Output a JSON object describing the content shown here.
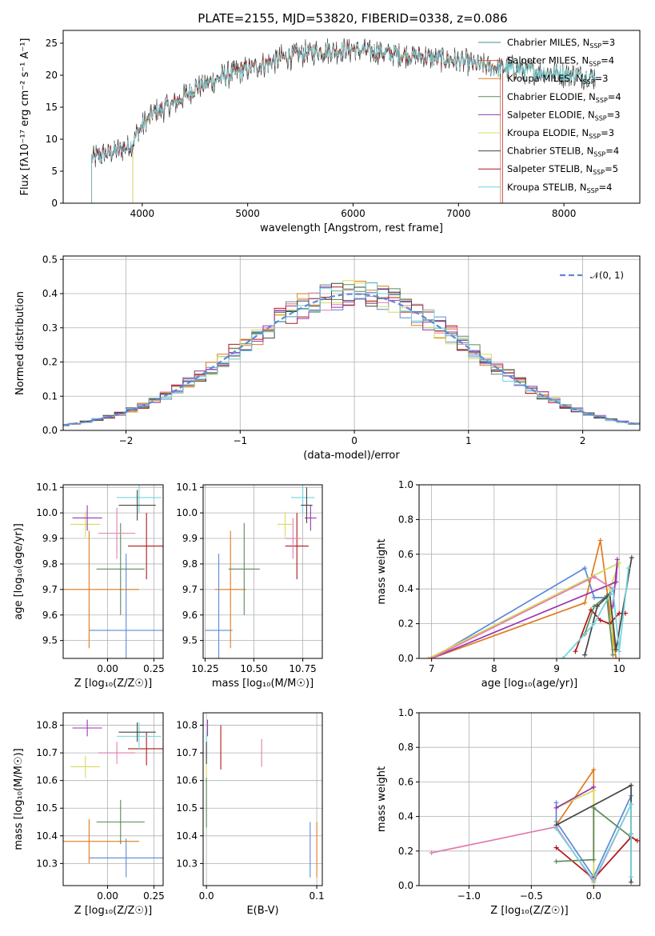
{
  "figure_title": "PLATE=2155, MJD=53820, FIBERID=0338, z=0.086",
  "palette": {
    "Chabrier MILES": "#4a8a96",
    "Salpeter MILES": "#d4553a",
    "Kroupa MILES": "#e07b1e",
    "Chabrier ELODIE": "#5a8a5a",
    "Salpeter ELODIE": "#9a36b0",
    "Kroupa ELODIE": "#d4dc5a",
    "Chabrier STELIB": "#444444",
    "Salpeter STELIB": "#b01818",
    "Kroupa STELIB": "#6fd4dc",
    "hist_blue": "#5b8ad6",
    "hist_pink": "#e27cb0",
    "gauss": "#5b8ad6"
  },
  "chart_data": [
    {
      "id": "spectrum",
      "type": "line",
      "title": "PLATE=2155, MJD=53820, FIBERID=0338, z=0.086",
      "xlabel": "wavelength [Angstrom, rest frame]",
      "ylabel": "Flux [fλ10⁻¹⁷ erg cm⁻² s⁻¹ A⁻¹]",
      "xlim": [
        3250,
        8720
      ],
      "ylim": [
        0,
        27
      ],
      "xticks": [
        "4000",
        "5000",
        "6000",
        "7000",
        "8000"
      ],
      "yticks": [
        "0",
        "5",
        "10",
        "15",
        "20",
        "25"
      ],
      "legend_position": "top-right",
      "continuum": [
        [
          3520,
          7.0
        ],
        [
          3700,
          8.0
        ],
        [
          3900,
          9.0
        ],
        [
          3950,
          11.0
        ],
        [
          4100,
          14.0
        ],
        [
          4300,
          15.5
        ],
        [
          4500,
          18.0
        ],
        [
          4800,
          20.0
        ],
        [
          5100,
          21.5
        ],
        [
          5400,
          23.0
        ],
        [
          5700,
          23.8
        ],
        [
          6000,
          24.0
        ],
        [
          6300,
          23.5
        ],
        [
          6600,
          23.0
        ],
        [
          6900,
          22.5
        ],
        [
          7200,
          21.5
        ],
        [
          7500,
          21.0
        ],
        [
          7800,
          20.5
        ],
        [
          8000,
          20.2
        ],
        [
          8300,
          19.8
        ]
      ],
      "series": [
        {
          "name": "Chabrier MILES, N",
          "sub": "SSP",
          "suffix": "=3"
        },
        {
          "name": "Salpeter MILES, N",
          "sub": "SSP",
          "suffix": "=4"
        },
        {
          "name": "Kroupa MILES, N",
          "sub": "SSP",
          "suffix": "=3"
        },
        {
          "name": "Chabrier ELODIE, N",
          "sub": "SSP",
          "suffix": "=4"
        },
        {
          "name": "Salpeter ELODIE, N",
          "sub": "SSP",
          "suffix": "=3"
        },
        {
          "name": "Kroupa ELODIE, N",
          "sub": "SSP",
          "suffix": "=3"
        },
        {
          "name": "Chabrier STELIB, N",
          "sub": "SSP",
          "suffix": "=4"
        },
        {
          "name": "Salpeter STELIB, N",
          "sub": "SSP",
          "suffix": "=5"
        },
        {
          "name": "Kroupa STELIB, N",
          "sub": "SSP",
          "suffix": "=4"
        }
      ]
    },
    {
      "id": "residuals",
      "type": "bar",
      "xlabel": "(data-model)/error",
      "ylabel": "Normed distribution",
      "xlim": [
        -2.55,
        2.5
      ],
      "ylim": [
        0,
        0.51
      ],
      "xticks": [
        "−2",
        "−1",
        "0",
        "1",
        "2"
      ],
      "yticks": [
        "0.0",
        "0.1",
        "0.2",
        "0.3",
        "0.4",
        "0.5"
      ],
      "legend_position": "top-right",
      "gauss_label": "𝒩(0, 1)",
      "bin_width": 0.1,
      "bin_start": -2.6
    },
    {
      "id": "age_vs_Z",
      "type": "scatter",
      "xlabel": "Z [log₁₀(Z/Z☉)]",
      "ylabel": "age  [log₁₀(age/yr)]",
      "xlim": [
        -0.24,
        0.3
      ],
      "ylim": [
        9.43,
        10.11
      ],
      "xticks": [
        "0.00",
        "0.25"
      ],
      "yticks": [
        "9.5",
        "9.6",
        "9.7",
        "9.8",
        "9.9",
        "10.0",
        "10.1"
      ],
      "points": [
        {
          "x": 0.1,
          "y": 9.54,
          "xerr": 0.2,
          "yerr": 0.3,
          "c": "hist_blue"
        },
        {
          "x": -0.1,
          "y": 9.7,
          "xerr": 0.27,
          "yerr": 0.23,
          "c": "Kroupa MILES"
        },
        {
          "x": 0.07,
          "y": 9.78,
          "xerr": 0.13,
          "yerr": 0.18,
          "c": "Chabrier ELODIE"
        },
        {
          "x": 0.21,
          "y": 9.87,
          "xerr": 0.1,
          "yerr": 0.13,
          "c": "Salpeter STELIB"
        },
        {
          "x": 0.05,
          "y": 9.92,
          "xerr": 0.1,
          "yerr": 0.1,
          "c": "hist_pink"
        },
        {
          "x": -0.12,
          "y": 9.955,
          "xerr": 0.08,
          "yerr": 0.05,
          "c": "Kroupa ELODIE"
        },
        {
          "x": -0.11,
          "y": 9.98,
          "xerr": 0.08,
          "yerr": 0.05,
          "c": "Salpeter ELODIE"
        },
        {
          "x": 0.17,
          "y": 10.06,
          "xerr": 0.12,
          "yerr": 0.06,
          "c": "Kroupa STELIB"
        },
        {
          "x": 0.16,
          "y": 10.03,
          "xerr": 0.1,
          "yerr": 0.06,
          "c": "Chabrier STELIB"
        }
      ]
    },
    {
      "id": "age_vs_mass",
      "type": "scatter",
      "xlabel": "mass [log₁₀(M/M☉)]",
      "ylabel": "",
      "xlim": [
        10.24,
        10.85
      ],
      "ylim": [
        9.43,
        10.11
      ],
      "xticks": [
        "10.25",
        "10.50",
        "10.75"
      ],
      "yticks": [
        "9.5",
        "9.6",
        "9.7",
        "9.8",
        "9.9",
        "10.0",
        "10.1"
      ],
      "points": [
        {
          "x": 10.32,
          "y": 9.54,
          "xerr": 0.07,
          "yerr": 0.3,
          "c": "hist_blue"
        },
        {
          "x": 10.38,
          "y": 9.7,
          "xerr": 0.08,
          "yerr": 0.23,
          "c": "Kroupa MILES"
        },
        {
          "x": 10.45,
          "y": 9.78,
          "xerr": 0.08,
          "yerr": 0.18,
          "c": "Chabrier ELODIE"
        },
        {
          "x": 10.72,
          "y": 9.87,
          "xerr": 0.06,
          "yerr": 0.13,
          "c": "Salpeter STELIB"
        },
        {
          "x": 10.7,
          "y": 9.9,
          "xerr": 0.04,
          "yerr": 0.08,
          "c": "hist_pink"
        },
        {
          "x": 10.66,
          "y": 9.955,
          "xerr": 0.04,
          "yerr": 0.05,
          "c": "Kroupa ELODIE"
        },
        {
          "x": 10.79,
          "y": 9.98,
          "xerr": 0.03,
          "yerr": 0.05,
          "c": "Salpeter ELODIE"
        },
        {
          "x": 10.75,
          "y": 10.06,
          "xerr": 0.06,
          "yerr": 0.06,
          "c": "Kroupa STELIB"
        },
        {
          "x": 10.77,
          "y": 10.03,
          "xerr": 0.03,
          "yerr": 0.07,
          "c": "Chabrier STELIB"
        }
      ]
    },
    {
      "id": "massweight_vs_age",
      "type": "line",
      "xlabel": "age  [log₁₀(age/yr)]",
      "ylabel": "mass weight",
      "xlim": [
        6.8,
        10.33
      ],
      "ylim": [
        0,
        1
      ],
      "xticks": [
        "7",
        "8",
        "9",
        "10"
      ],
      "yticks": [
        "0.0",
        "0.2",
        "0.4",
        "0.6",
        "0.8",
        "1.0"
      ],
      "series": [
        {
          "c": "hist_blue",
          "pts": [
            [
              7.0,
              0.0
            ],
            [
              9.45,
              0.52
            ],
            [
              9.6,
              0.35
            ],
            [
              9.8,
              0.35
            ]
          ]
        },
        {
          "c": "Kroupa MILES",
          "pts": [
            [
              7.0,
              0.0
            ],
            [
              9.45,
              0.32
            ],
            [
              9.7,
              0.68
            ],
            [
              9.95,
              0.0
            ]
          ]
        },
        {
          "c": "Kroupa ELODIE",
          "pts": [
            [
              6.95,
              0.0
            ],
            [
              10.0,
              0.55
            ],
            [
              9.85,
              0.4
            ],
            [
              9.9,
              0.05
            ]
          ]
        },
        {
          "c": "Salpeter ELODIE",
          "pts": [
            [
              7.0,
              0.0
            ],
            [
              9.95,
              0.44
            ],
            [
              9.97,
              0.57
            ],
            [
              9.9,
              0.3
            ]
          ]
        },
        {
          "c": "hist_pink",
          "pts": [
            [
              7.0,
              0.0
            ],
            [
              9.6,
              0.47
            ],
            [
              9.9,
              0.4
            ]
          ]
        },
        {
          "c": "Salpeter STELIB",
          "pts": [
            [
              9.3,
              0.04
            ],
            [
              9.55,
              0.28
            ],
            [
              9.7,
              0.22
            ],
            [
              9.85,
              0.2
            ],
            [
              10.0,
              0.26
            ],
            [
              10.1,
              0.26
            ]
          ]
        },
        {
          "c": "Chabrier ELODIE",
          "pts": [
            [
              9.45,
              0.14
            ],
            [
              9.6,
              0.3
            ],
            [
              9.8,
              0.36
            ],
            [
              9.9,
              0.02
            ]
          ]
        },
        {
          "c": "Chabrier STELIB",
          "pts": [
            [
              9.45,
              0.02
            ],
            [
              9.65,
              0.3
            ],
            [
              9.85,
              0.37
            ],
            [
              9.95,
              0.05
            ],
            [
              10.2,
              0.58
            ]
          ]
        },
        {
          "c": "Kroupa STELIB",
          "pts": [
            [
              9.1,
              0.0
            ],
            [
              9.6,
              0.2
            ],
            [
              9.9,
              0.4
            ],
            [
              10.0,
              0.04
            ],
            [
              10.15,
              0.52
            ]
          ]
        }
      ]
    },
    {
      "id": "mass_vs_Z",
      "type": "scatter",
      "xlabel": "Z [log₁₀(Z/Z☉)]",
      "ylabel": "mass [log₁₀(M/M☉)]",
      "xlim": [
        -0.24,
        0.3
      ],
      "ylim": [
        10.22,
        10.845
      ],
      "xticks": [
        "0.00",
        "0.25"
      ],
      "yticks": [
        "10.3",
        "10.4",
        "10.5",
        "10.6",
        "10.7",
        "10.8"
      ],
      "points": [
        {
          "x": 0.1,
          "y": 10.32,
          "xerr": 0.2,
          "yerr": 0.07,
          "c": "hist_blue"
        },
        {
          "x": -0.1,
          "y": 10.38,
          "xerr": 0.27,
          "yerr": 0.08,
          "c": "Kroupa MILES"
        },
        {
          "x": 0.07,
          "y": 10.45,
          "xerr": 0.13,
          "yerr": 0.08,
          "c": "Chabrier ELODIE"
        },
        {
          "x": 0.21,
          "y": 10.715,
          "xerr": 0.1,
          "yerr": 0.06,
          "c": "Salpeter STELIB"
        },
        {
          "x": 0.05,
          "y": 10.7,
          "xerr": 0.1,
          "yerr": 0.04,
          "c": "hist_pink"
        },
        {
          "x": -0.12,
          "y": 10.65,
          "xerr": 0.08,
          "yerr": 0.04,
          "c": "Kroupa ELODIE"
        },
        {
          "x": -0.11,
          "y": 10.79,
          "xerr": 0.08,
          "yerr": 0.03,
          "c": "Salpeter ELODIE"
        },
        {
          "x": 0.17,
          "y": 10.76,
          "xerr": 0.12,
          "yerr": 0.05,
          "c": "Kroupa STELIB"
        },
        {
          "x": 0.16,
          "y": 10.775,
          "xerr": 0.1,
          "yerr": 0.035,
          "c": "Chabrier STELIB"
        }
      ]
    },
    {
      "id": "mass_vs_ebv",
      "type": "scatter",
      "xlabel": "E(B-V)",
      "ylabel": "",
      "xlim": [
        -0.003,
        0.105
      ],
      "ylim": [
        10.22,
        10.845
      ],
      "xticks": [
        "0.0",
        "0.1"
      ],
      "yticks": [
        "10.3",
        "10.4",
        "10.5",
        "10.6",
        "10.7",
        "10.8"
      ],
      "points": [
        {
          "x": 0.094,
          "y": 10.35,
          "xerr": 0,
          "yerr": 0.1,
          "c": "hist_blue"
        },
        {
          "x": 0.1,
          "y": 10.35,
          "xerr": 0,
          "yerr": 0.1,
          "c": "Kroupa MILES"
        },
        {
          "x": 0.0,
          "y": 10.52,
          "xerr": 0,
          "yerr": 0.09,
          "c": "Chabrier ELODIE"
        },
        {
          "x": 0.013,
          "y": 10.72,
          "xerr": 0,
          "yerr": 0.08,
          "c": "Salpeter STELIB"
        },
        {
          "x": 0.05,
          "y": 10.7,
          "xerr": 0,
          "yerr": 0.05,
          "c": "hist_pink"
        },
        {
          "x": 0.0,
          "y": 10.65,
          "xerr": 0,
          "yerr": 0.04,
          "c": "Kroupa ELODIE"
        },
        {
          "x": 0.001,
          "y": 10.79,
          "xerr": 0,
          "yerr": 0.03,
          "c": "Salpeter ELODIE"
        },
        {
          "x": 0.0,
          "y": 10.73,
          "xerr": 0,
          "yerr": 0.05,
          "c": "Kroupa STELIB"
        },
        {
          "x": 0.0,
          "y": 10.7,
          "xerr": 0,
          "yerr": 0.04,
          "c": "Chabrier STELIB"
        }
      ]
    },
    {
      "id": "massweight_vs_Z",
      "type": "line",
      "xlabel": "Z [log₁₀(Z/Z☉)]",
      "ylabel": "mass weight",
      "xlim": [
        -1.4,
        0.37
      ],
      "ylim": [
        0,
        1
      ],
      "xticks": [
        "−1.0",
        "−0.5",
        "0.0"
      ],
      "yticks": [
        "0.0",
        "0.2",
        "0.4",
        "0.6",
        "0.8",
        "1.0"
      ],
      "series": [
        {
          "c": "hist_pink",
          "pts": [
            [
              -1.3,
              0.19
            ],
            [
              -0.3,
              0.34
            ],
            [
              0.0,
              0.02
            ],
            [
              0.3,
              0.47
            ]
          ]
        },
        {
          "c": "hist_blue",
          "pts": [
            [
              -0.3,
              0.48
            ],
            [
              -0.3,
              0.37
            ],
            [
              0.0,
              0.05
            ],
            [
              0.3,
              0.52
            ],
            [
              0.3,
              0.3
            ]
          ]
        },
        {
          "c": "Kroupa MILES",
          "pts": [
            [
              -0.3,
              0.35
            ],
            [
              0.0,
              0.67
            ],
            [
              0.0,
              0.0
            ]
          ]
        },
        {
          "c": "Kroupa ELODIE",
          "pts": [
            [
              -0.3,
              0.45
            ],
            [
              0.0,
              0.55
            ],
            [
              0.0,
              0.0
            ]
          ]
        },
        {
          "c": "Salpeter ELODIE",
          "pts": [
            [
              -0.3,
              0.45
            ],
            [
              0.0,
              0.57
            ]
          ]
        },
        {
          "c": "Salpeter STELIB",
          "pts": [
            [
              -0.3,
              0.22
            ],
            [
              0.0,
              0.04
            ],
            [
              0.3,
              0.28
            ],
            [
              0.35,
              0.26
            ]
          ]
        },
        {
          "c": "Chabrier ELODIE",
          "pts": [
            [
              -0.3,
              0.14
            ],
            [
              0.0,
              0.15
            ],
            [
              0.0,
              0.45
            ],
            [
              0.3,
              0.28
            ]
          ]
        },
        {
          "c": "Chabrier STELIB",
          "pts": [
            [
              -0.3,
              0.35
            ],
            [
              0.3,
              0.58
            ],
            [
              0.3,
              0.02
            ]
          ]
        },
        {
          "c": "Kroupa STELIB",
          "pts": [
            [
              -0.3,
              0.33
            ],
            [
              0.0,
              0.03
            ],
            [
              0.3,
              0.47
            ],
            [
              0.3,
              0.05
            ]
          ]
        }
      ]
    }
  ]
}
